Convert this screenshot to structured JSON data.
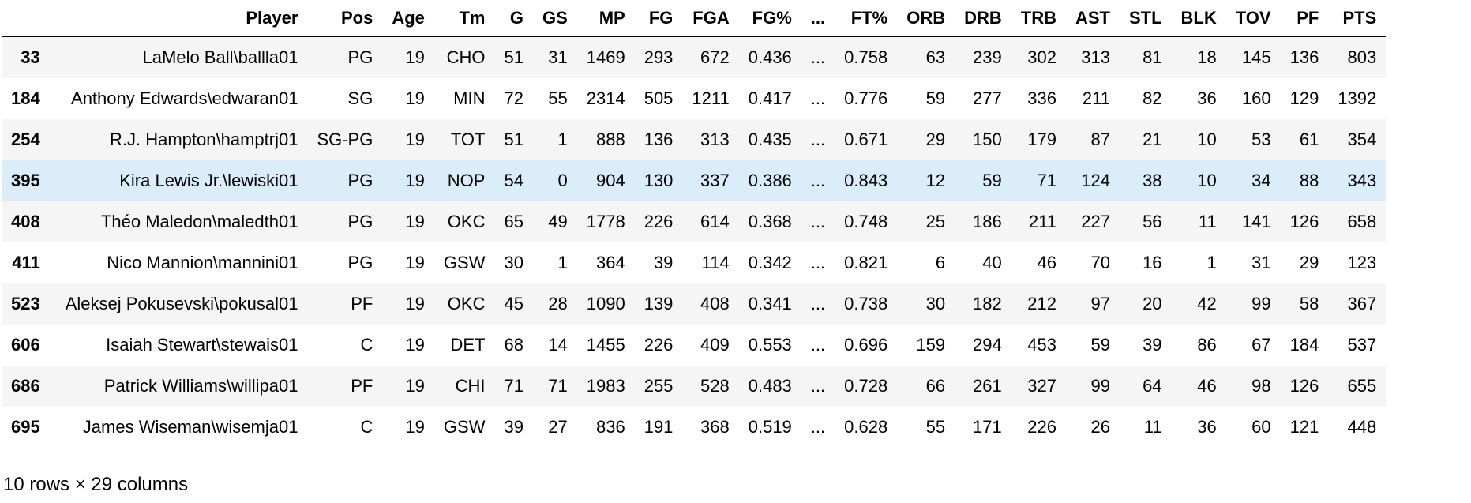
{
  "table": {
    "columns": [
      "Player",
      "Pos",
      "Age",
      "Tm",
      "G",
      "GS",
      "MP",
      "FG",
      "FGA",
      "FG%",
      "...",
      "FT%",
      "ORB",
      "DRB",
      "TRB",
      "AST",
      "STL",
      "BLK",
      "TOV",
      "PF",
      "PTS"
    ],
    "hovered_row": 3,
    "rows": [
      {
        "index": "33",
        "cells": [
          "LaMelo Ball\\ballla01",
          "PG",
          "19",
          "CHO",
          "51",
          "31",
          "1469",
          "293",
          "672",
          "0.436",
          "...",
          "0.758",
          "63",
          "239",
          "302",
          "313",
          "81",
          "18",
          "145",
          "136",
          "803"
        ]
      },
      {
        "index": "184",
        "cells": [
          "Anthony Edwards\\edwaran01",
          "SG",
          "19",
          "MIN",
          "72",
          "55",
          "2314",
          "505",
          "1211",
          "0.417",
          "...",
          "0.776",
          "59",
          "277",
          "336",
          "211",
          "82",
          "36",
          "160",
          "129",
          "1392"
        ]
      },
      {
        "index": "254",
        "cells": [
          "R.J. Hampton\\hamptrj01",
          "SG-PG",
          "19",
          "TOT",
          "51",
          "1",
          "888",
          "136",
          "313",
          "0.435",
          "...",
          "0.671",
          "29",
          "150",
          "179",
          "87",
          "21",
          "10",
          "53",
          "61",
          "354"
        ]
      },
      {
        "index": "395",
        "cells": [
          "Kira Lewis Jr.\\lewiski01",
          "PG",
          "19",
          "NOP",
          "54",
          "0",
          "904",
          "130",
          "337",
          "0.386",
          "...",
          "0.843",
          "12",
          "59",
          "71",
          "124",
          "38",
          "10",
          "34",
          "88",
          "343"
        ]
      },
      {
        "index": "408",
        "cells": [
          "Théo Maledon\\maledth01",
          "PG",
          "19",
          "OKC",
          "65",
          "49",
          "1778",
          "226",
          "614",
          "0.368",
          "...",
          "0.748",
          "25",
          "186",
          "211",
          "227",
          "56",
          "11",
          "141",
          "126",
          "658"
        ]
      },
      {
        "index": "411",
        "cells": [
          "Nico Mannion\\mannini01",
          "PG",
          "19",
          "GSW",
          "30",
          "1",
          "364",
          "39",
          "114",
          "0.342",
          "...",
          "0.821",
          "6",
          "40",
          "46",
          "70",
          "16",
          "1",
          "31",
          "29",
          "123"
        ]
      },
      {
        "index": "523",
        "cells": [
          "Aleksej Pokusevski\\pokusal01",
          "PF",
          "19",
          "OKC",
          "45",
          "28",
          "1090",
          "139",
          "408",
          "0.341",
          "...",
          "0.738",
          "30",
          "182",
          "212",
          "97",
          "20",
          "42",
          "99",
          "58",
          "367"
        ]
      },
      {
        "index": "606",
        "cells": [
          "Isaiah Stewart\\stewais01",
          "C",
          "19",
          "DET",
          "68",
          "14",
          "1455",
          "226",
          "409",
          "0.553",
          "...",
          "0.696",
          "159",
          "294",
          "453",
          "59",
          "39",
          "86",
          "67",
          "184",
          "537"
        ]
      },
      {
        "index": "686",
        "cells": [
          "Patrick Williams\\willipa01",
          "PF",
          "19",
          "CHI",
          "71",
          "71",
          "1983",
          "255",
          "528",
          "0.483",
          "...",
          "0.728",
          "66",
          "261",
          "327",
          "99",
          "64",
          "46",
          "98",
          "126",
          "655"
        ]
      },
      {
        "index": "695",
        "cells": [
          "James Wiseman\\wisemja01",
          "C",
          "19",
          "GSW",
          "39",
          "27",
          "836",
          "191",
          "368",
          "0.519",
          "...",
          "0.628",
          "55",
          "171",
          "226",
          "26",
          "11",
          "36",
          "60",
          "121",
          "448"
        ]
      }
    ]
  },
  "footer": {
    "shape_text": "10 rows × 29 columns"
  }
}
